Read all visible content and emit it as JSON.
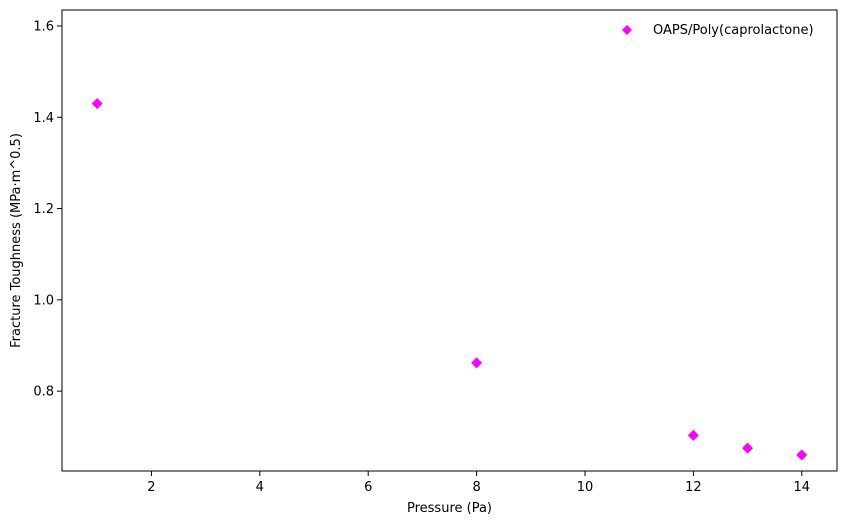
{
  "chart_data": {
    "type": "scatter",
    "title": "",
    "xlabel": "Pressure (Pa)",
    "ylabel": "Fracture Toughness (MPa·m^0.5)",
    "xlim": [
      0.35,
      14.65
    ],
    "ylim": [
      0.625,
      1.635
    ],
    "xticks": [
      2,
      4,
      6,
      8,
      10,
      12,
      14
    ],
    "yticks": [
      0.8,
      1.0,
      1.2,
      1.4,
      1.6
    ],
    "grid": false,
    "legend_position": "top-right",
    "series": [
      {
        "name": "OAPS/Poly(caprolactone)",
        "marker": "diamond",
        "color": "#ff00ff",
        "x": [
          1,
          8,
          12,
          13,
          14
        ],
        "y": [
          1.43,
          0.862,
          0.703,
          0.675,
          0.66
        ]
      }
    ]
  }
}
